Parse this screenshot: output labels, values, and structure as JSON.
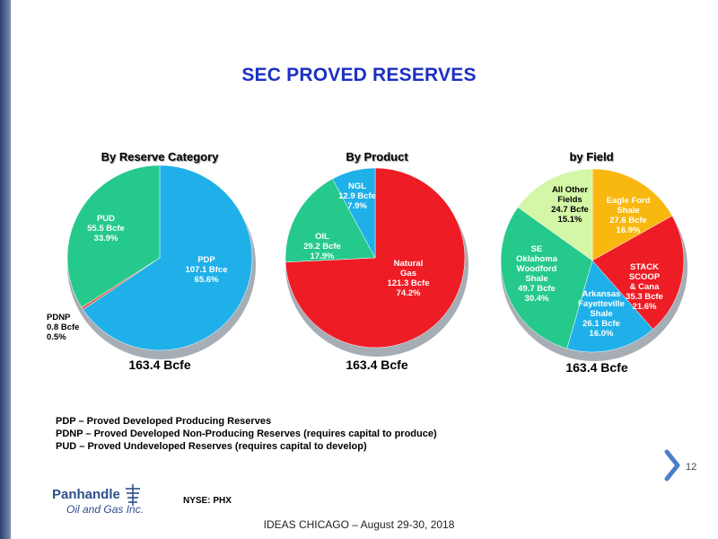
{
  "slide": {
    "title": "SEC PROVED RESERVES",
    "page_number": "12",
    "footer": "IDEAS CHICAGO – August 29-30, 2018",
    "logo": {
      "name": "Panhandle",
      "sub": "Oil and Gas Inc.",
      "ticker": "NYSE: PHX"
    },
    "legend": [
      "PDP – Proved Developed Producing Reserves",
      "PDNP – Proved Developed Non-Producing Reserves (requires capital to produce)",
      "PUD – Proved Undeveloped Reserves (requires capital to develop)"
    ]
  },
  "chart_data": [
    {
      "type": "pie",
      "title": "By Reserve Category",
      "total": "163.4 Bcfe",
      "slices": [
        {
          "label": "PDP",
          "value": 107.1,
          "unit": "Bfce",
          "percent": "65.6%",
          "color": "#1fb0ea"
        },
        {
          "label": "PDNP",
          "value": 0.8,
          "unit": "Bcfe",
          "percent": "0.5%",
          "color": "#d9665a"
        },
        {
          "label": "PUD",
          "value": 55.5,
          "unit": "Bcfe",
          "percent": "33.9%",
          "color": "#26c98c"
        }
      ]
    },
    {
      "type": "pie",
      "title": "By Product",
      "total": "163.4 Bcfe",
      "slices": [
        {
          "label": "Natural Gas",
          "value": 121.3,
          "unit": "Bcfe",
          "percent": "74.2%",
          "color": "#ee1c25"
        },
        {
          "label": "OIL",
          "value": 29.2,
          "unit": "Bcfe",
          "percent": "17.9%",
          "color": "#26c98c"
        },
        {
          "label": "NGL",
          "value": 12.9,
          "unit": "Bcfe",
          "percent": "7.9%",
          "color": "#1fb0ea"
        }
      ]
    },
    {
      "type": "pie",
      "title": "by Field",
      "total": "163.4 Bcfe",
      "slices": [
        {
          "label": "Eagle Ford Shale",
          "value": 27.6,
          "unit": "Bcfe",
          "percent": "16.9%",
          "color": "#f8b80f"
        },
        {
          "label": "STACK SCOOP & Cana",
          "value": 35.3,
          "unit": "Bcfe",
          "percent": "21.6%",
          "color": "#ee1c25"
        },
        {
          "label": "Arkansas Fayetteville Shale",
          "value": 26.1,
          "unit": "Bcfe",
          "percent": "16.0%",
          "color": "#1fb0ea"
        },
        {
          "label": "SE Oklahoma Woodford Shale",
          "value": 49.7,
          "unit": "Bcfe",
          "percent": "30.4%",
          "color": "#26c98c"
        },
        {
          "label": "All Other Fields",
          "value": 24.7,
          "unit": "Bcfe",
          "percent": "15.1%",
          "color": "#d3f7a6"
        }
      ]
    }
  ]
}
